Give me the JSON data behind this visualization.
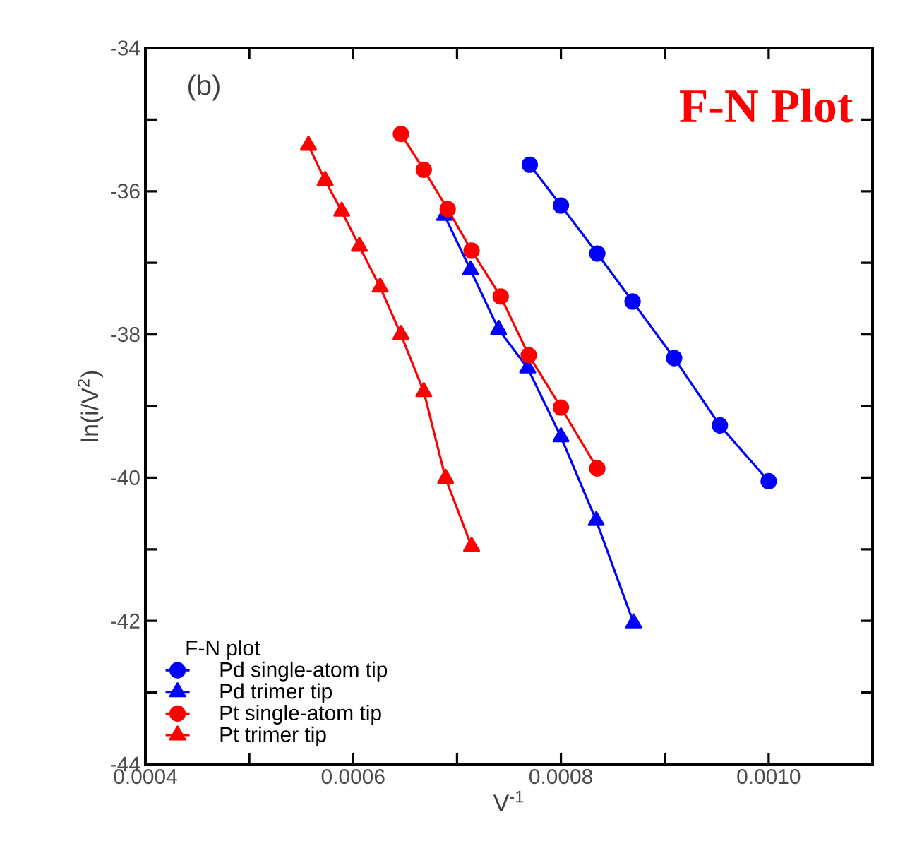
{
  "chart_data": {
    "type": "line",
    "title": "F-N Plot",
    "xlabel": "V$^{-1}$",
    "ylabel": "ln(i/V$^{2}$)",
    "legend_title": "F-N plot",
    "annotations": [
      "(b)"
    ],
    "xlim": [
      0.0004,
      0.0011
    ],
    "ylim": [
      -44,
      -34
    ],
    "xticks": [
      {
        "value": 0.0004,
        "label": "0.0004"
      },
      {
        "value": 0.0005,
        "label": null
      },
      {
        "value": 0.0006,
        "label": "0.0006"
      },
      {
        "value": 0.0007,
        "label": null
      },
      {
        "value": 0.0008,
        "label": "0.0008"
      },
      {
        "value": 0.0009,
        "label": null
      },
      {
        "value": 0.001,
        "label": "0.0010"
      }
    ],
    "yticks": [
      -44,
      {
        "value": -43,
        "label": null
      },
      -42,
      {
        "value": -41,
        "label": null
      },
      -40,
      {
        "value": -39,
        "label": null
      },
      -38,
      {
        "value": -37,
        "label": null
      },
      -36,
      {
        "value": -35,
        "label": null
      },
      -34
    ],
    "legend": "bottom left",
    "grid": false,
    "line_style": "solid",
    "series": [
      {
        "name": "Pd single-atom tip",
        "color": "#0000ff",
        "marker": "circle",
        "x": [
          0.00077,
          0.0008,
          0.000835,
          0.000869,
          0.000909,
          0.000953,
          0.001
        ],
        "values": [
          -35.63,
          -36.2,
          -36.87,
          -37.54,
          -38.33,
          -39.27,
          -40.05
        ]
      },
      {
        "name": "Pd trimer tip",
        "color": "#0000ff",
        "marker": "triangle",
        "x": [
          0.000688,
          0.000713,
          0.00074,
          0.000768,
          0.0008,
          0.000834,
          0.00087
        ],
        "values": [
          -36.34,
          -37.1,
          -37.93,
          -38.47,
          -39.43,
          -40.6,
          -42.03
        ]
      },
      {
        "name": "Pt single-atom tip",
        "color": "#ff0000",
        "marker": "circle",
        "x": [
          0.000646,
          0.000668,
          0.000691,
          0.000714,
          0.000742,
          0.000769,
          0.0008,
          0.000835
        ],
        "values": [
          -35.2,
          -35.7,
          -36.25,
          -36.83,
          -37.47,
          -38.29,
          -39.02,
          -39.87
        ]
      },
      {
        "name": "Pt trimer tip",
        "color": "#ff0000",
        "marker": "triangle",
        "x": [
          0.000557,
          0.000573,
          0.000589,
          0.000606,
          0.000626,
          0.000646,
          0.000668,
          0.000689,
          0.000714
        ],
        "values": [
          -35.36,
          -35.85,
          -36.28,
          -36.77,
          -37.34,
          -38.0,
          -38.8,
          -40.01,
          -40.96
        ]
      }
    ]
  }
}
